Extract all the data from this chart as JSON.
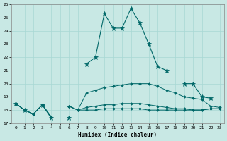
{
  "xlabel": "Humidex (Indice chaleur)",
  "bg_color": "#c8e8e4",
  "grid_color": "#a8d8d4",
  "line_color": "#006868",
  "x": [
    0,
    1,
    2,
    3,
    4,
    5,
    6,
    7,
    8,
    9,
    10,
    11,
    12,
    13,
    14,
    15,
    16,
    17,
    18,
    19,
    20,
    21,
    22,
    23
  ],
  "line_max": [
    18.5,
    18.0,
    null,
    18.4,
    17.4,
    null,
    17.4,
    null,
    21.5,
    22.0,
    25.3,
    24.2,
    24.2,
    25.7,
    24.6,
    23.0,
    21.3,
    21.0,
    null,
    20.0,
    20.0,
    19.0,
    18.9,
    null
  ],
  "line_p75": [
    18.5,
    18.0,
    17.7,
    18.4,
    17.5,
    null,
    18.3,
    18.0,
    19.3,
    19.5,
    19.7,
    19.8,
    19.9,
    20.0,
    20.0,
    20.0,
    19.8,
    19.5,
    19.3,
    19.0,
    18.9,
    18.8,
    18.3,
    18.2
  ],
  "line_p25": [
    18.5,
    18.0,
    17.7,
    18.4,
    17.5,
    null,
    18.3,
    18.0,
    18.2,
    18.3,
    18.4,
    18.4,
    18.5,
    18.5,
    18.5,
    18.4,
    18.3,
    18.2,
    18.1,
    18.1,
    18.0,
    18.0,
    18.1,
    18.1
  ],
  "line_min": [
    18.5,
    18.0,
    17.7,
    18.4,
    17.5,
    null,
    18.3,
    18.0,
    18.0,
    18.0,
    18.1,
    18.1,
    18.1,
    18.1,
    18.1,
    18.0,
    18.0,
    18.0,
    18.0,
    18.0,
    18.0,
    18.0,
    18.1,
    18.1
  ],
  "ylim": [
    17.0,
    26.0
  ],
  "xlim": [
    -0.5,
    23.5
  ],
  "yticks": [
    17,
    18,
    19,
    20,
    21,
    22,
    23,
    24,
    25,
    26
  ],
  "xticks": [
    0,
    1,
    2,
    3,
    4,
    5,
    6,
    7,
    8,
    9,
    10,
    11,
    12,
    13,
    14,
    15,
    16,
    17,
    18,
    19,
    20,
    21,
    22,
    23
  ]
}
